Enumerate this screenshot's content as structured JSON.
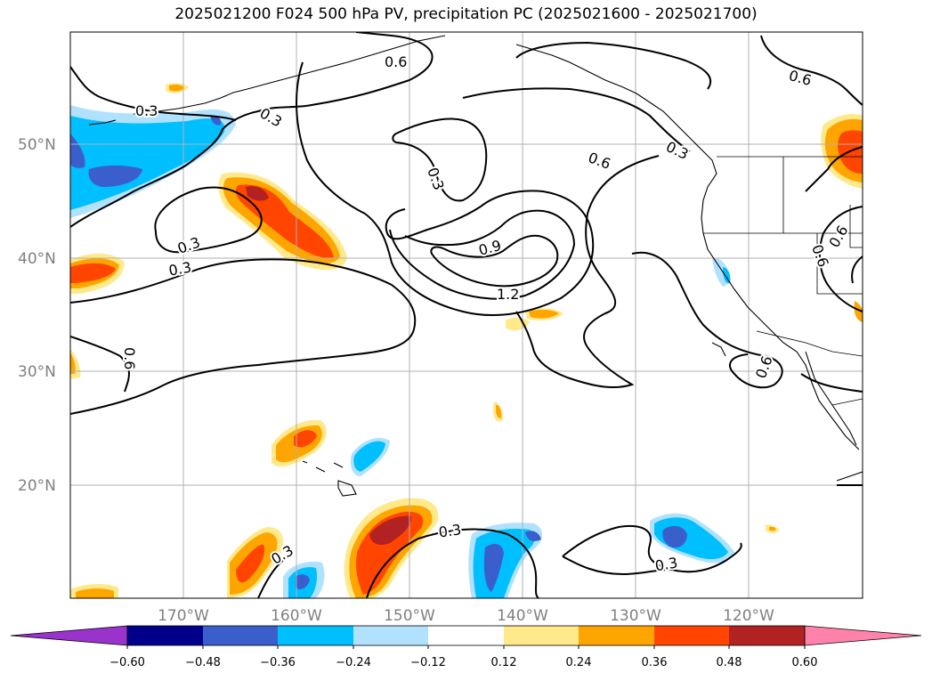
{
  "title": "2025021200 F024 500 hPa PV, precipitation PC (2025021600 - 2025021700)",
  "lat_labels": [
    "50°N",
    "40°N",
    "30°N",
    "20°N"
  ],
  "lon_labels": [
    "170°W",
    "160°W",
    "150°W",
    "140°W",
    "130°W",
    "120°W"
  ],
  "contour_labels": [
    "0.3",
    "0.3",
    "0.3",
    "0.3",
    "0.6",
    "0.3",
    "0.9",
    "1.2",
    "0.6",
    "0.3",
    "0.6",
    "0.6",
    "0.6",
    "0.3",
    "0.3",
    "0.3",
    "0.6",
    "0.6"
  ],
  "colorbar": {
    "ticks": [
      "−0.60",
      "−0.48",
      "−0.36",
      "−0.24",
      "−0.12",
      "0.12",
      "0.24",
      "0.36",
      "0.48",
      "0.60"
    ],
    "colors": [
      "#9933cc",
      "#00008b",
      "#3a5fcd",
      "#00bfff",
      "#b0e2ff",
      "#ffffff",
      "#ffe98a",
      "#ffa500",
      "#ff4500",
      "#b22222",
      "#ff82ab"
    ]
  }
}
